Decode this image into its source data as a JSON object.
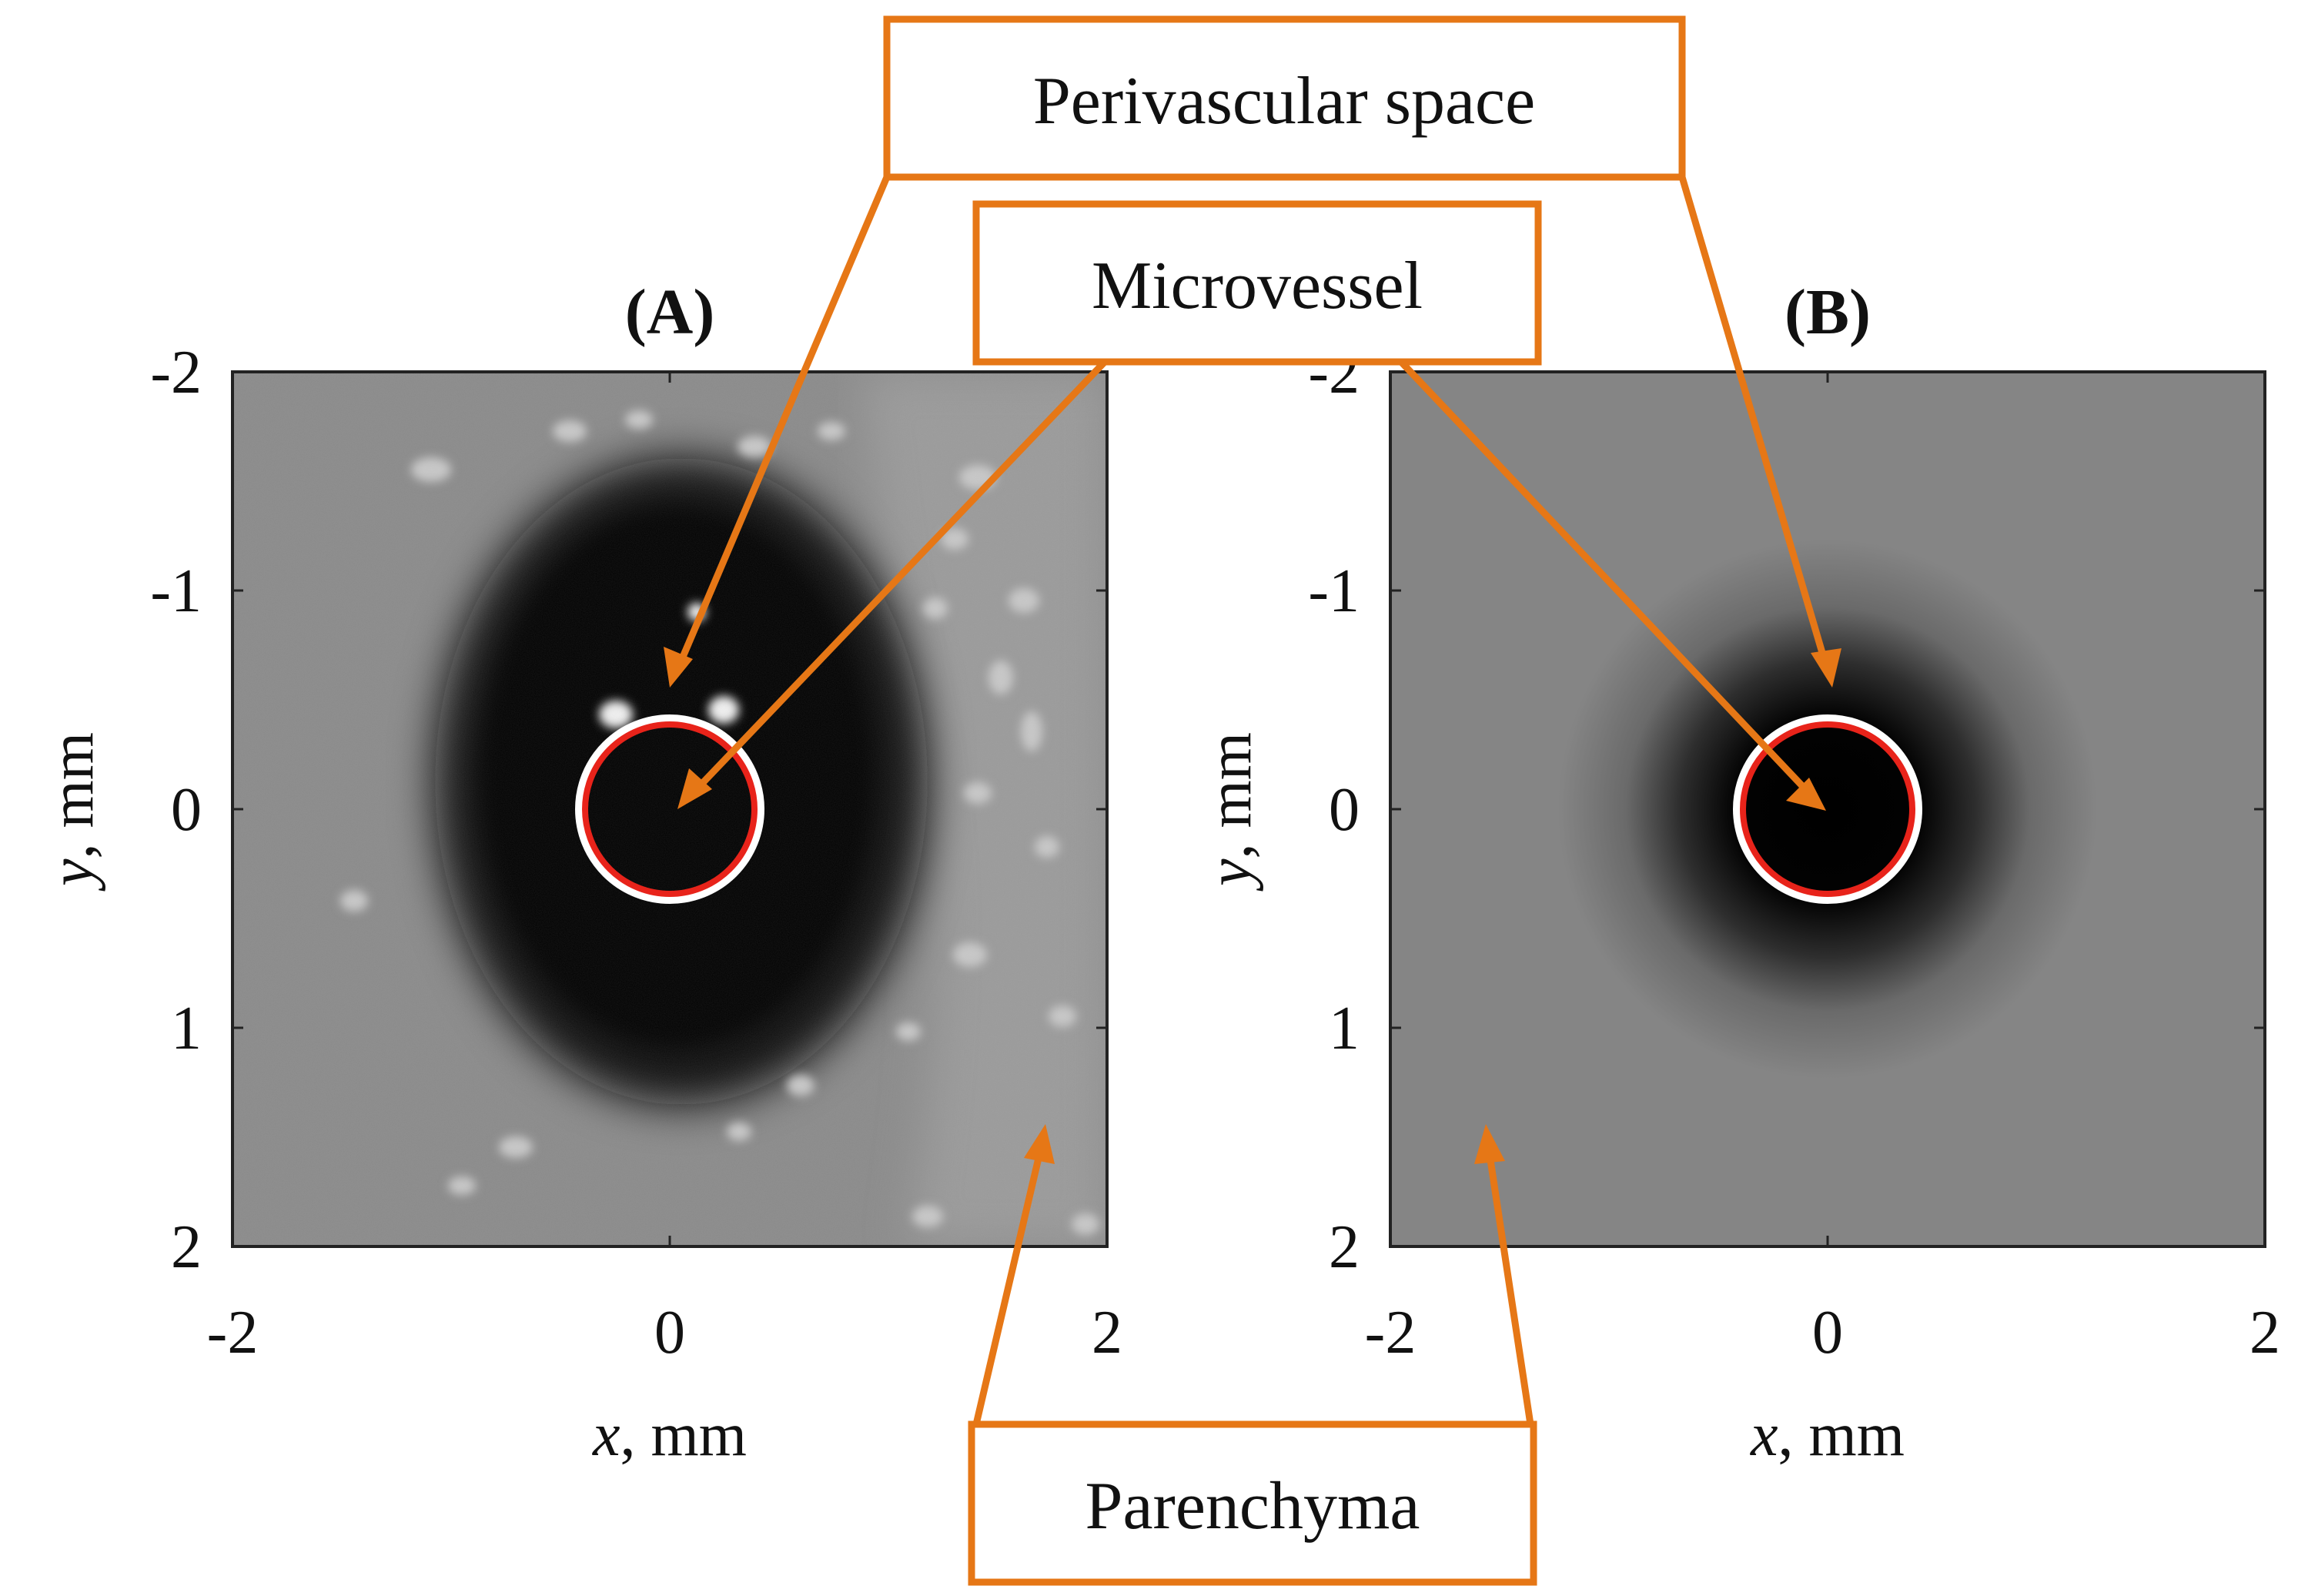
{
  "panels": [
    {
      "title": "(A)",
      "xlabel": {
        "var": "x",
        "unit": "mm"
      },
      "ylabel": {
        "var": "y",
        "unit": "mm"
      },
      "xticks": [
        "-2",
        "0",
        "2"
      ],
      "yticks": [
        "-2",
        "-1",
        "0",
        "1",
        "2"
      ]
    },
    {
      "title": "(B)",
      "xlabel": {
        "var": "x",
        "unit": "mm"
      },
      "ylabel": {
        "var": "y",
        "unit": "mm"
      },
      "xticks": [
        "-2",
        "0",
        "2"
      ],
      "yticks": [
        "-2",
        "-1",
        "0",
        "1",
        "2"
      ]
    }
  ],
  "callouts": {
    "perivascular": "Perivascular space",
    "microvessel": "Microvessel",
    "parenchyma": "Parenchyma"
  },
  "colors": {
    "callout": "#e67716",
    "vessel_outline": "#e8231a",
    "vessel_halo": "#ffffff"
  }
}
